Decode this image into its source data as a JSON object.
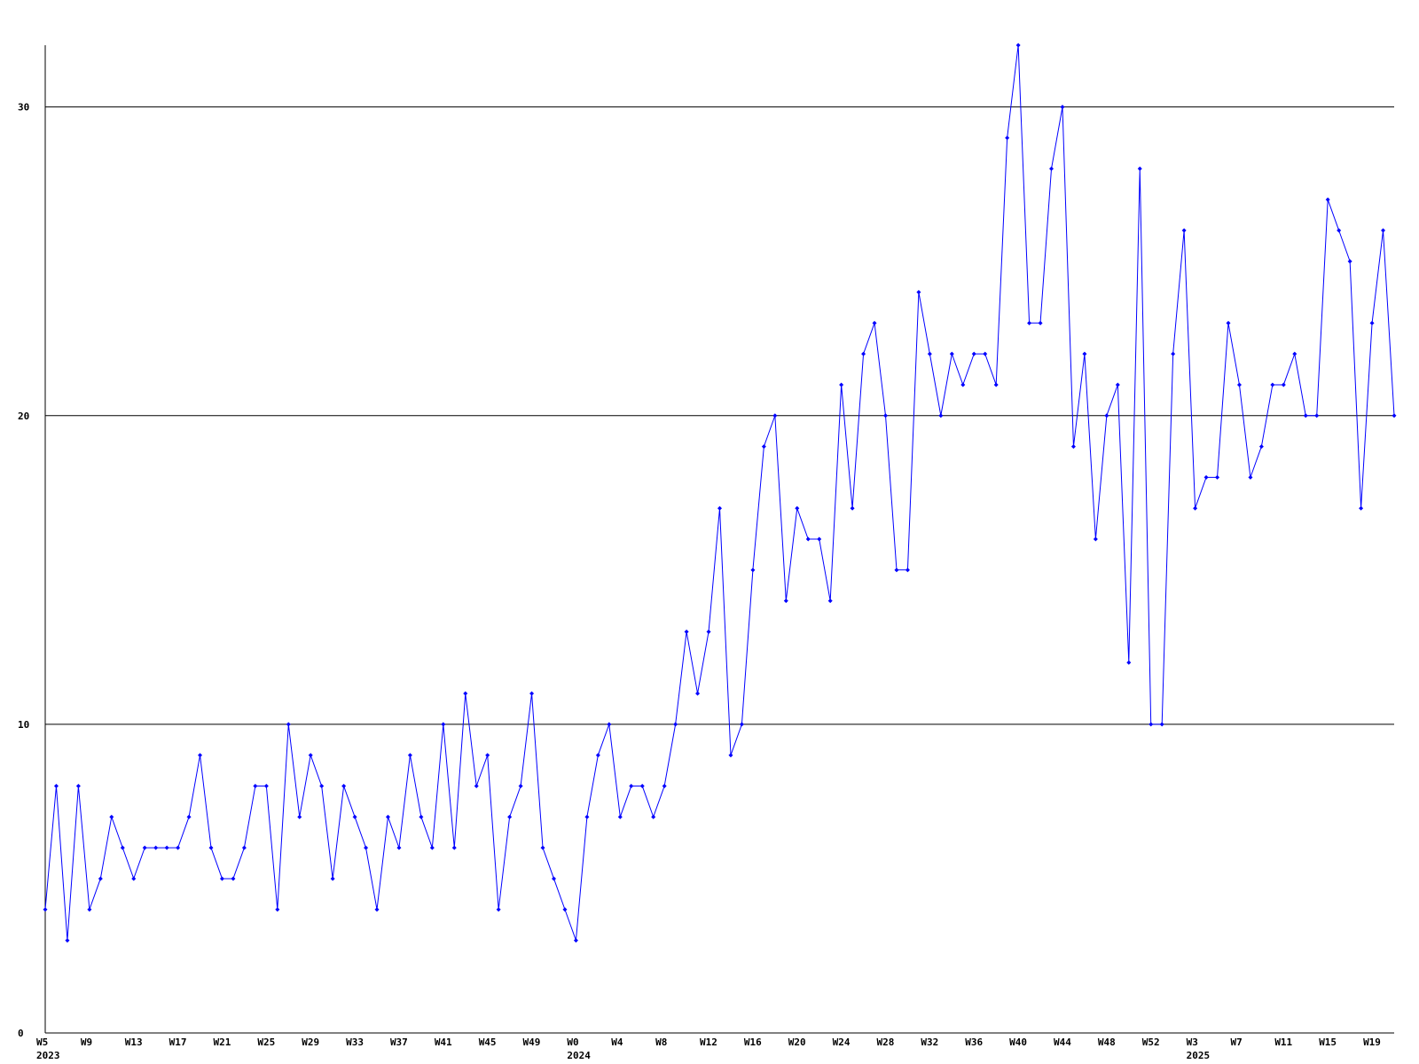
{
  "chart_data": {
    "type": "line",
    "categories": [
      "W5\n2023",
      null,
      null,
      null,
      "W9",
      null,
      null,
      null,
      "W13",
      null,
      null,
      null,
      "W17",
      null,
      null,
      null,
      "W21",
      null,
      null,
      null,
      "W25",
      null,
      null,
      null,
      "W29",
      null,
      null,
      null,
      "W33",
      null,
      null,
      null,
      "W37",
      null,
      null,
      null,
      "W41",
      null,
      null,
      null,
      "W45",
      null,
      null,
      null,
      "W49",
      null,
      null,
      null,
      "W0\n2024",
      null,
      null,
      null,
      "W4",
      null,
      null,
      null,
      "W8",
      null,
      null,
      null,
      "W12",
      null,
      null,
      null,
      "W16",
      null,
      null,
      null,
      "W20",
      null,
      null,
      null,
      "W24",
      null,
      null,
      null,
      "W28",
      null,
      null,
      null,
      "W32",
      null,
      null,
      null,
      "W36",
      null,
      null,
      null,
      "W40",
      null,
      null,
      null,
      "W44",
      null,
      null,
      null,
      "W48",
      null,
      null,
      null,
      "W52",
      null,
      null,
      null,
      "W3\n2025",
      null,
      null,
      null,
      "W7",
      null,
      null,
      null,
      "W11",
      null,
      null,
      null,
      "W15",
      null,
      null,
      null,
      "W19",
      null,
      null
    ],
    "values": [
      4,
      8,
      3,
      8,
      4,
      5,
      7,
      6,
      5,
      6,
      6,
      6,
      6,
      7,
      9,
      6,
      5,
      5,
      6,
      8,
      8,
      4,
      10,
      7,
      9,
      8,
      5,
      8,
      7,
      6,
      4,
      7,
      6,
      9,
      7,
      6,
      10,
      6,
      11,
      8,
      9,
      4,
      7,
      8,
      11,
      6,
      5,
      4,
      3,
      7,
      9,
      10,
      7,
      8,
      8,
      7,
      8,
      10,
      13,
      11,
      13,
      17,
      9,
      10,
      15,
      19,
      20,
      14,
      17,
      16,
      16,
      14,
      21,
      17,
      22,
      23,
      20,
      15,
      15,
      24,
      22,
      20,
      22,
      21,
      22,
      22,
      21,
      29,
      32,
      23,
      23,
      28,
      30,
      19,
      22,
      16,
      20,
      21,
      12,
      28,
      10,
      10,
      22,
      26,
      17,
      18,
      18,
      23,
      21,
      18,
      19,
      21,
      21,
      22,
      20,
      20,
      27,
      26,
      25,
      17,
      23,
      26,
      20
    ],
    "color": "#0000ff",
    "ylim": [
      0,
      32
    ],
    "yticks": [
      0,
      10,
      20,
      30
    ],
    "grid": true
  }
}
